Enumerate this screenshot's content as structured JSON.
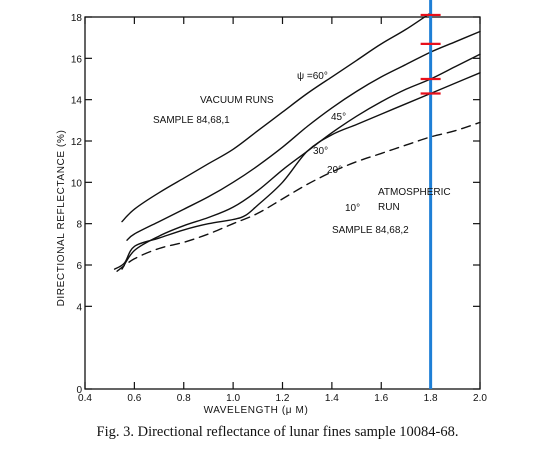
{
  "chart_data": {
    "type": "line",
    "xlabel": "WAVELENGTH (μ M)",
    "ylabel": "DIRECTIONAL REFLECTANCE (%)",
    "xlim": [
      0.4,
      2.0
    ],
    "ylim": [
      0,
      18
    ],
    "xticks": [
      0.4,
      0.6,
      0.8,
      1.0,
      1.2,
      1.4,
      1.6,
      1.8,
      2.0
    ],
    "xtick_labels": [
      "0.4",
      "0.6",
      "0.8",
      "1.0",
      "1.2",
      "1.4",
      "1.6",
      "1.8",
      "2.0"
    ],
    "yticks": [
      0,
      4,
      6,
      8,
      10,
      12,
      14,
      16,
      18
    ],
    "ytick_labels": [
      "0",
      "4",
      "6",
      "8",
      "10",
      "12",
      "14",
      "16",
      "18"
    ],
    "grid": false,
    "annotations": [
      "VACUUM RUNS",
      "SAMPLE 84,68,1",
      "ATMOSPHERIC",
      "RUN",
      "SAMPLE 84,68,2"
    ],
    "series": [
      {
        "name": "ψ =60°",
        "style": "solid",
        "x": [
          0.55,
          0.6,
          0.7,
          0.8,
          0.9,
          1.0,
          1.1,
          1.2,
          1.3,
          1.4,
          1.5,
          1.6,
          1.7,
          1.8
        ],
        "y": [
          8.1,
          8.7,
          9.5,
          10.2,
          10.9,
          11.6,
          12.5,
          13.4,
          14.3,
          15.1,
          15.9,
          16.7,
          17.4,
          18.2
        ]
      },
      {
        "name": "45°",
        "style": "solid",
        "x": [
          0.57,
          0.6,
          0.7,
          0.8,
          0.9,
          1.0,
          1.1,
          1.2,
          1.3,
          1.4,
          1.5,
          1.6,
          1.7,
          1.8,
          1.9,
          2.0
        ],
        "y": [
          7.2,
          7.5,
          8.1,
          8.7,
          9.3,
          10.0,
          10.8,
          11.7,
          12.7,
          13.6,
          14.4,
          15.1,
          15.7,
          16.3,
          16.8,
          17.3
        ]
      },
      {
        "name": "30°",
        "style": "solid",
        "x": [
          0.55,
          0.6,
          0.7,
          0.8,
          0.9,
          1.0,
          1.1,
          1.2,
          1.3,
          1.4,
          1.5,
          1.6,
          1.7,
          1.8,
          1.9,
          2.0
        ],
        "y": [
          5.8,
          6.7,
          7.4,
          7.9,
          8.3,
          8.8,
          9.6,
          10.6,
          11.5,
          12.4,
          13.2,
          13.9,
          14.5,
          15.0,
          15.6,
          16.2
        ]
      },
      {
        "name": "20°",
        "style": "solid",
        "x": [
          0.52,
          0.56,
          0.6,
          0.7,
          0.8,
          0.9,
          1.0,
          1.05,
          1.1,
          1.2,
          1.3,
          1.4,
          1.5,
          1.6,
          1.7,
          1.8,
          1.9,
          2.0
        ],
        "y": [
          5.8,
          6.1,
          6.9,
          7.3,
          7.7,
          8.0,
          8.2,
          8.4,
          8.9,
          10.0,
          11.5,
          12.3,
          12.8,
          13.3,
          13.8,
          14.3,
          14.8,
          15.3
        ]
      },
      {
        "name": "10°",
        "style": "dashed",
        "x": [
          0.53,
          0.6,
          0.7,
          0.8,
          0.9,
          1.0,
          1.1,
          1.2,
          1.3,
          1.4,
          1.5,
          1.6,
          1.7,
          1.8,
          1.9,
          2.0
        ],
        "y": [
          5.7,
          6.3,
          6.8,
          7.1,
          7.5,
          8.0,
          8.5,
          9.2,
          9.9,
          10.5,
          11.0,
          11.4,
          11.8,
          12.2,
          12.5,
          12.9
        ]
      }
    ],
    "overlay": {
      "vertical_line_x": 1.8,
      "vertical_line_color": "#1e7fd6",
      "marker_color": "#e8101c",
      "markers": [
        {
          "x": 1.8,
          "y": 18.1
        },
        {
          "x": 1.8,
          "y": 16.7
        },
        {
          "x": 1.8,
          "y": 15.0
        },
        {
          "x": 1.8,
          "y": 14.3
        }
      ]
    }
  },
  "caption": "Fig. 3.  Directional reflectance of lunar fines sample 10084-68."
}
